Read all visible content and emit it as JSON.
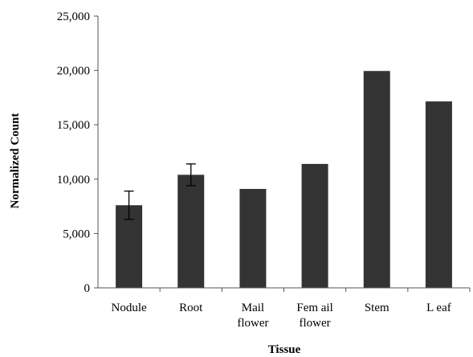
{
  "chart_data": {
    "type": "bar",
    "title": "",
    "xlabel": "Tissue",
    "ylabel": "Normalized Count",
    "ylim": [
      0,
      25000
    ],
    "yticks": [
      0,
      5000,
      10000,
      15000,
      20000,
      25000
    ],
    "ytick_labels": [
      "0",
      "5,000",
      "10,000",
      "15,000",
      "20,000",
      "25,000"
    ],
    "categories": [
      "Nodule",
      "Root",
      "Mail flower",
      "Femail flower",
      "Stem",
      "Leaf"
    ],
    "category_lines": [
      [
        "Nodule"
      ],
      [
        "Root"
      ],
      [
        "Mail",
        "flower"
      ],
      [
        "Fem ail",
        "flower"
      ],
      [
        "Stem"
      ],
      [
        "L eaf"
      ]
    ],
    "values": [
      7600,
      10400,
      9100,
      11400,
      19950,
      17150
    ],
    "error_bars": [
      {
        "low": 6300,
        "high": 8900
      },
      {
        "low": 9400,
        "high": 11400
      },
      null,
      null,
      null,
      null
    ],
    "grid": false,
    "legend": "none",
    "bar_color": "#333333"
  }
}
